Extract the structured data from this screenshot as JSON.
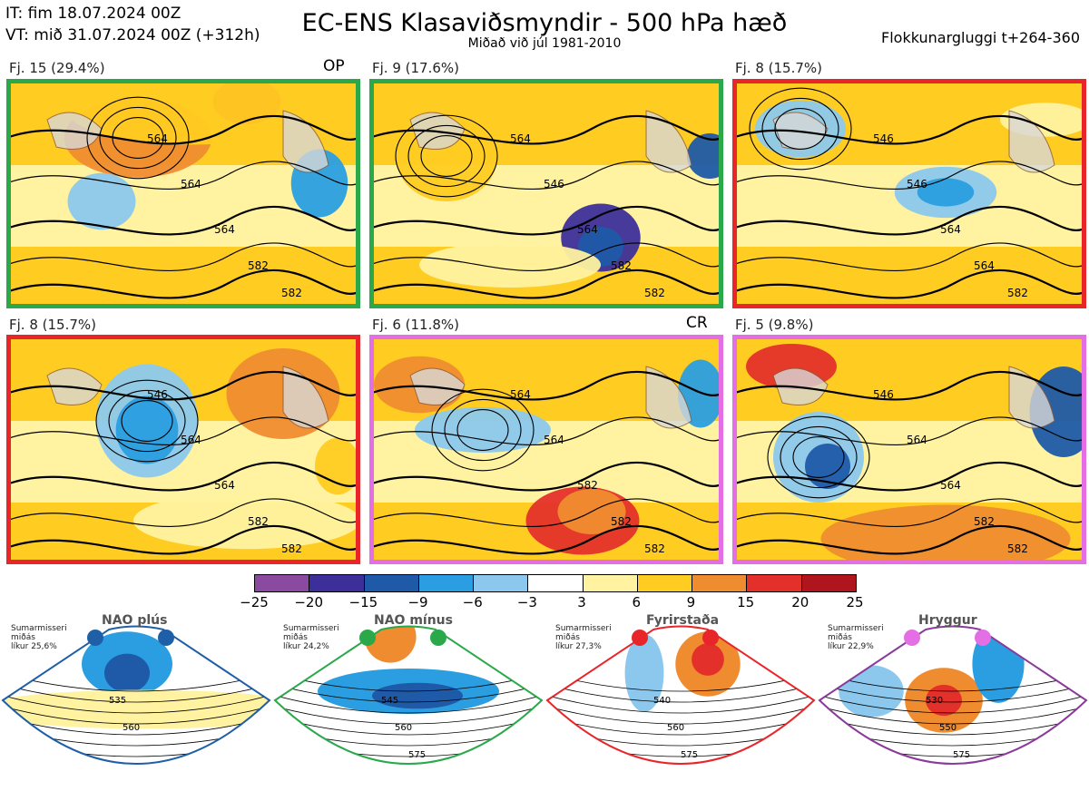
{
  "header": {
    "it": "IT: fim 18.07.2024 00Z",
    "vt": "VT: mið 31.07.2024 00Z  (+312h)",
    "title": "EC-ENS Klasaviðsmyndir - 500 hPa hæð",
    "subtitle": "Miðað við júl 1981-2010",
    "window": "Flokkunargluggi t+264-360"
  },
  "colors": {
    "green": "#2aa84a",
    "red": "#e8262a",
    "pink": "#e46fe4",
    "blue_regime": "#1f5fa8",
    "purple_regime": "#8a3a9a"
  },
  "chart_data": {
    "type": "heatmap",
    "panels": [
      {
        "label": "Fj. 15 (29.4%)",
        "tag": "OP",
        "frame": "green",
        "contours": [
          "564",
          "564",
          "564",
          "582",
          "582"
        ]
      },
      {
        "label": "Fj. 9 (17.6%)",
        "tag": "",
        "frame": "green",
        "contours": [
          "564",
          "546",
          "564",
          "582",
          "582"
        ]
      },
      {
        "label": "Fj. 8 (15.7%)",
        "tag": "",
        "frame": "red",
        "contours": [
          "546",
          "546",
          "564",
          "564",
          "582"
        ]
      },
      {
        "label": "Fj. 8 (15.7%)",
        "tag": "",
        "frame": "red",
        "contours": [
          "546",
          "564",
          "564",
          "582",
          "582"
        ]
      },
      {
        "label": "Fj. 6 (11.8%)",
        "tag": "CR",
        "frame": "pink",
        "contours": [
          "564",
          "564",
          "582",
          "582",
          "582"
        ]
      },
      {
        "label": "Fj. 5 (9.8%)",
        "tag": "",
        "frame": "pink",
        "contours": [
          "546",
          "564",
          "564",
          "582",
          "582"
        ]
      }
    ],
    "colorbar": {
      "ticks": [
        "−25",
        "−20",
        "−15",
        "−9",
        "−6",
        "−3",
        "3",
        "6",
        "9",
        "15",
        "20",
        "25"
      ],
      "colors": [
        "#8a4aa0",
        "#3d2f9a",
        "#1f5aa8",
        "#2a9ee0",
        "#8cc8ee",
        "#ffffff",
        "#fff2a0",
        "#ffcc22",
        "#f08c30",
        "#e4302a",
        "#b0141c"
      ]
    },
    "regimes": [
      {
        "name": "NAO plús",
        "note": "Sumarmisseri\nmiðás\nlíkur 25,6%",
        "frame": "blue_regime",
        "dot": "#1f5fa8",
        "contours": [
          "535",
          "560"
        ]
      },
      {
        "name": "NAO mínus",
        "note": "Sumarmisseri\nmiðás\nlíkur 24,2%",
        "frame": "green",
        "dot": "#2aa84a",
        "contours": [
          "545",
          "560",
          "575"
        ]
      },
      {
        "name": "Fyrirstaða",
        "note": "Sumarmisseri\nmiðás\nlíkur 27,3%",
        "frame": "red",
        "dot": "#e8262a",
        "contours": [
          "540",
          "560",
          "575"
        ]
      },
      {
        "name": "Hryggur",
        "note": "Sumarmisseri\nmiðás\nlíkur 22,9%",
        "frame": "purple_regime",
        "dot": "#e46fe4",
        "contours": [
          "530",
          "550",
          "575"
        ]
      }
    ]
  }
}
